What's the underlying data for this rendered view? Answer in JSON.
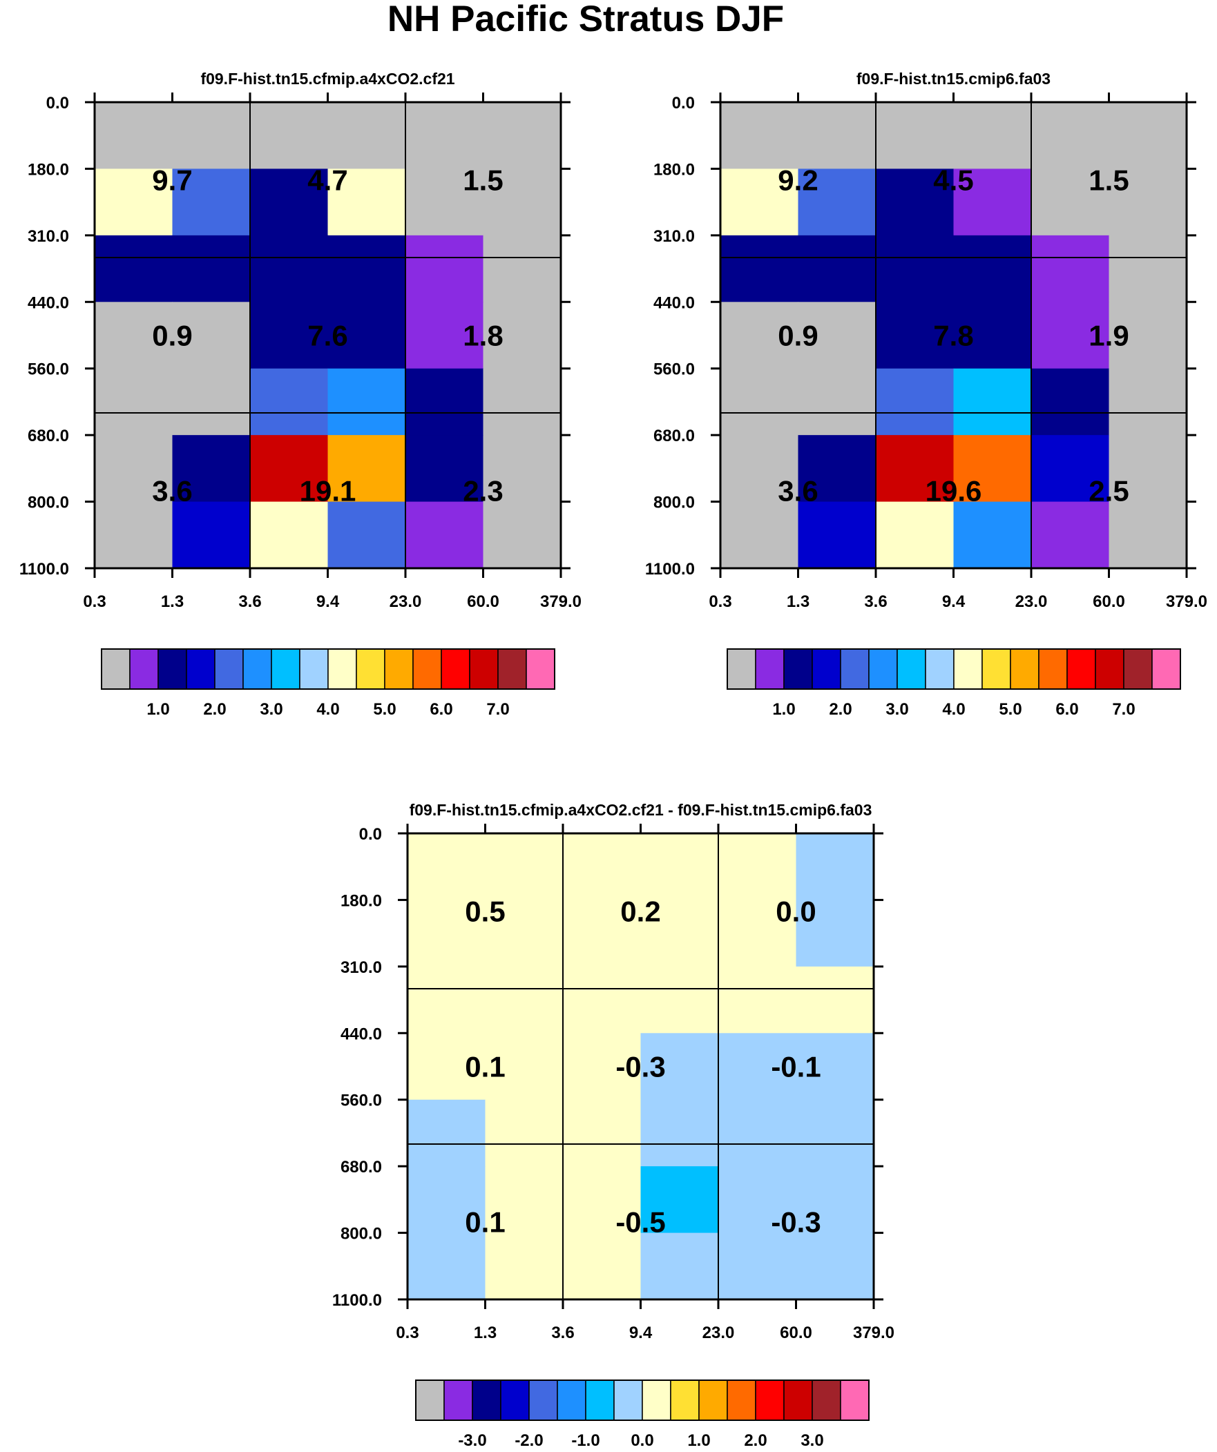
{
  "title": "NH Pacific Stratus DJF",
  "colors": {
    "palette": [
      "#bfbfbf",
      "#8a2be2",
      "#00008b",
      "#0000cd",
      "#4169e1",
      "#1e90ff",
      "#00bfff",
      "#a0d2ff",
      "#ffffc8",
      "#ffe033",
      "#ffaa00",
      "#ff6a00",
      "#ff0000",
      "#cd0000",
      "#a0222a",
      "#ff69b4"
    ],
    "grid_line": "#000000",
    "missing": "#bfbfbf"
  },
  "chart_data": [
    {
      "type": "heatmap",
      "title": "f09.F-hist.tn15.cfmip.a4xCO2.cf21",
      "x_tick_labels": [
        "0.3",
        "1.3",
        "3.6",
        "9.4",
        "23.0",
        "60.0",
        "379.0"
      ],
      "y_tick_labels": [
        "0.0",
        "180.0",
        "310.0",
        "440.0",
        "560.0",
        "680.0",
        "800.0",
        "1100.0"
      ],
      "cell_color_index": [
        [
          0,
          0,
          0,
          0,
          0,
          0
        ],
        [
          8,
          4,
          2,
          8,
          0,
          0
        ],
        [
          2,
          2,
          2,
          2,
          1,
          0
        ],
        [
          0,
          0,
          2,
          2,
          1,
          0
        ],
        [
          0,
          0,
          4,
          5,
          2,
          0
        ],
        [
          0,
          2,
          13,
          10,
          2,
          0
        ],
        [
          0,
          3,
          8,
          4,
          1,
          0
        ]
      ],
      "box_values": [
        [
          "9.7",
          "4.7",
          "1.5"
        ],
        [
          "0.9",
          "7.6",
          "1.8"
        ],
        [
          "3.6",
          "19.1",
          "2.3"
        ]
      ],
      "colorbar": {
        "labels": [
          "1.0",
          "2.0",
          "3.0",
          "4.0",
          "5.0",
          "6.0",
          "7.0"
        ]
      }
    },
    {
      "type": "heatmap",
      "title": "f09.F-hist.tn15.cmip6.fa03",
      "x_tick_labels": [
        "0.3",
        "1.3",
        "3.6",
        "9.4",
        "23.0",
        "60.0",
        "379.0"
      ],
      "y_tick_labels": [
        "0.0",
        "180.0",
        "310.0",
        "440.0",
        "560.0",
        "680.0",
        "800.0",
        "1100.0"
      ],
      "cell_color_index": [
        [
          0,
          0,
          0,
          0,
          0,
          0
        ],
        [
          8,
          4,
          2,
          1,
          0,
          0
        ],
        [
          2,
          2,
          2,
          2,
          1,
          0
        ],
        [
          0,
          0,
          2,
          2,
          1,
          0
        ],
        [
          0,
          0,
          4,
          6,
          2,
          0
        ],
        [
          0,
          2,
          13,
          11,
          3,
          0
        ],
        [
          0,
          3,
          8,
          5,
          1,
          0
        ]
      ],
      "box_values": [
        [
          "9.2",
          "4.5",
          "1.5"
        ],
        [
          "0.9",
          "7.8",
          "1.9"
        ],
        [
          "3.6",
          "19.6",
          "2.5"
        ]
      ],
      "colorbar": {
        "labels": [
          "1.0",
          "2.0",
          "3.0",
          "4.0",
          "5.0",
          "6.0",
          "7.0"
        ]
      }
    },
    {
      "type": "heatmap",
      "title": "f09.F-hist.tn15.cfmip.a4xCO2.cf21 - f09.F-hist.tn15.cmip6.fa03",
      "x_tick_labels": [
        "0.3",
        "1.3",
        "3.6",
        "9.4",
        "23.0",
        "60.0",
        "379.0"
      ],
      "y_tick_labels": [
        "0.0",
        "180.0",
        "310.0",
        "440.0",
        "560.0",
        "680.0",
        "800.0",
        "1100.0"
      ],
      "cell_color_index": [
        [
          8,
          8,
          8,
          8,
          8,
          7
        ],
        [
          8,
          8,
          8,
          8,
          8,
          7
        ],
        [
          8,
          8,
          8,
          8,
          8,
          8
        ],
        [
          8,
          8,
          8,
          7,
          7,
          7
        ],
        [
          7,
          8,
          8,
          7,
          7,
          7
        ],
        [
          7,
          8,
          8,
          6,
          7,
          7
        ],
        [
          7,
          8,
          8,
          7,
          7,
          7
        ]
      ],
      "box_values": [
        [
          "0.5",
          "0.2",
          "0.0"
        ],
        [
          "0.1",
          "-0.3",
          "-0.1"
        ],
        [
          "0.1",
          "-0.5",
          "-0.3"
        ]
      ],
      "colorbar": {
        "labels": [
          "-3.0",
          "-2.0",
          "-1.0",
          "0.0",
          "1.0",
          "2.0",
          "3.0"
        ]
      }
    }
  ]
}
